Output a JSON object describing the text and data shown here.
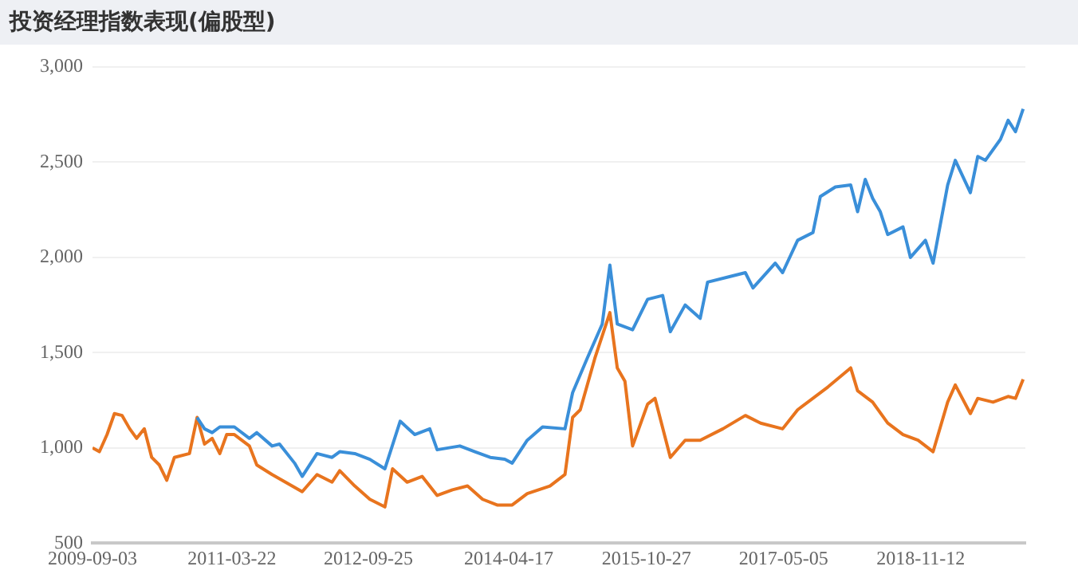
{
  "chart_data": {
    "type": "line",
    "title": "投资经理指数表现(偏股型)",
    "xlim": [
      "2009-09-03",
      "2020-01-10"
    ],
    "xticks": [
      "2009-09-03",
      "2011-03-22",
      "2012-09-25",
      "2014-04-17",
      "2015-10-27",
      "2017-05-05",
      "2018-11-12"
    ],
    "ylim": [
      500,
      3000
    ],
    "yticks": [
      500,
      {
        "value": 1000,
        "label": "1,000"
      },
      {
        "value": 1500,
        "label": "1,500"
      },
      {
        "value": 2000,
        "label": "2,000"
      },
      {
        "value": 2500,
        "label": "2,500"
      },
      {
        "value": 3000,
        "label": "3,000"
      }
    ],
    "grid": "y",
    "marker": "none",
    "line_style": "solid",
    "series": [
      {
        "color": "#3a8fd9",
        "x": [
          "2010-11",
          "2010-12",
          "2011-01",
          "2011-02",
          "2011-04",
          "2011-06",
          "2011-07",
          "2011-09",
          "2011-10",
          "2011-12",
          "2012-01",
          "2012-03",
          "2012-05",
          "2012-06",
          "2012-08",
          "2012-10",
          "2012-12",
          "2013-02",
          "2013-04",
          "2013-06",
          "2013-07",
          "2013-10",
          "2013-12",
          "2014-02",
          "2014-04",
          "2014-05",
          "2014-07",
          "2014-09",
          "2014-12",
          "2015-01",
          "2015-03",
          "2015-05",
          "2015-06",
          "2015-07",
          "2015-09",
          "2015-11",
          "2016-01",
          "2016-02",
          "2016-04",
          "2016-06",
          "2016-07",
          "2016-10",
          "2016-12",
          "2017-01",
          "2017-04",
          "2017-05",
          "2017-07",
          "2017-09",
          "2017-10",
          "2017-12",
          "2018-02",
          "2018-03",
          "2018-04",
          "2018-05",
          "2018-06",
          "2018-07",
          "2018-09",
          "2018-10",
          "2018-12",
          "2019-01",
          "2019-03",
          "2019-04",
          "2019-06",
          "2019-07",
          "2019-08",
          "2019-10",
          "2019-11",
          "2019-12",
          "2020-01"
        ],
        "values": [
          1160,
          1100,
          1080,
          1110,
          1110,
          1050,
          1080,
          1010,
          1020,
          920,
          850,
          970,
          950,
          980,
          970,
          940,
          890,
          1140,
          1070,
          1100,
          990,
          1010,
          980,
          950,
          940,
          920,
          1040,
          1110,
          1100,
          1290,
          1470,
          1650,
          1960,
          1650,
          1620,
          1780,
          1800,
          1610,
          1750,
          1680,
          1870,
          1900,
          1920,
          1840,
          1970,
          1920,
          2090,
          2130,
          2320,
          2370,
          2380,
          2240,
          2410,
          2310,
          2240,
          2120,
          2160,
          2000,
          2090,
          1970,
          2380,
          2510,
          2340,
          2530,
          2510,
          2620,
          2720,
          2660,
          2780
        ]
      },
      {
        "color": "#e8741e",
        "x": [
          "2009-09-03",
          "2009-10",
          "2009-11",
          "2009-12",
          "2010-01",
          "2010-02",
          "2010-03",
          "2010-04",
          "2010-05",
          "2010-06",
          "2010-07",
          "2010-08",
          "2010-10",
          "2010-11",
          "2010-12",
          "2011-01",
          "2011-02",
          "2011-03",
          "2011-04",
          "2011-06",
          "2011-07",
          "2011-09",
          "2012-01",
          "2012-03",
          "2012-05",
          "2012-06",
          "2012-08",
          "2012-10",
          "2012-12",
          "2013-01",
          "2013-03",
          "2013-05",
          "2013-07",
          "2013-09",
          "2013-11",
          "2014-01",
          "2014-03",
          "2014-05",
          "2014-07",
          "2014-10",
          "2014-12",
          "2015-01",
          "2015-02",
          "2015-04",
          "2015-06",
          "2015-07",
          "2015-08",
          "2015-09",
          "2015-11",
          "2015-12",
          "2016-02",
          "2016-04",
          "2016-06",
          "2016-09",
          "2016-12",
          "2017-02",
          "2017-05",
          "2017-07",
          "2017-11",
          "2018-02",
          "2018-03",
          "2018-05",
          "2018-07",
          "2018-09",
          "2018-11",
          "2019-01",
          "2019-03",
          "2019-04",
          "2019-06",
          "2019-07",
          "2019-09",
          "2019-11",
          "2019-12",
          "2020-01"
        ],
        "values": [
          1000,
          980,
          1070,
          1180,
          1170,
          1100,
          1050,
          1100,
          950,
          910,
          830,
          950,
          970,
          1160,
          1020,
          1050,
          970,
          1070,
          1070,
          1010,
          910,
          860,
          770,
          860,
          820,
          880,
          800,
          730,
          690,
          890,
          820,
          850,
          750,
          780,
          800,
          730,
          700,
          700,
          760,
          800,
          860,
          1160,
          1200,
          1470,
          1710,
          1420,
          1350,
          1010,
          1230,
          1260,
          950,
          1040,
          1040,
          1100,
          1170,
          1130,
          1100,
          1200,
          1320,
          1420,
          1300,
          1240,
          1130,
          1070,
          1040,
          980,
          1240,
          1330,
          1180,
          1260,
          1240,
          1270,
          1260,
          1360
        ]
      }
    ]
  }
}
